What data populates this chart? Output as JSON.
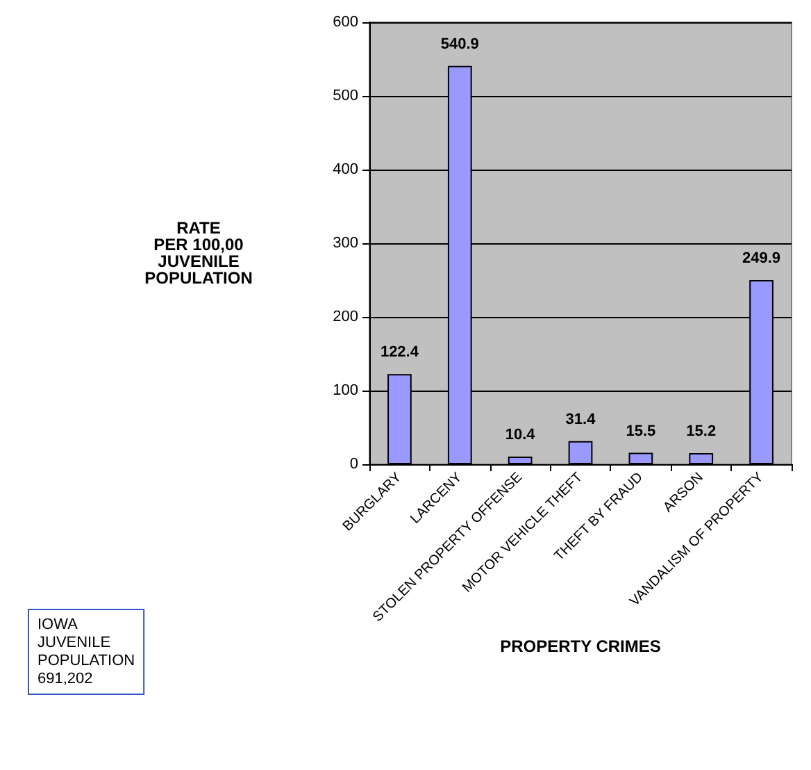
{
  "chart_data": {
    "type": "bar",
    "xlabel": "PROPERTY CRIMES",
    "ylabel": "RATE\nPER 100,00\nJUVENILE\nPOPULATION",
    "categories": [
      "BURGLARY",
      "LARCENY",
      "STOLEN PROPERTY OFFENSE",
      "MOTOR VEHICLE THEFT",
      "THEFT BY FRAUD",
      "ARSON",
      "VANDALISM OF PROPERTY"
    ],
    "values": [
      122.4,
      540.9,
      10.4,
      31.4,
      15.5,
      15.2,
      249.9
    ],
    "color": "#9999ff",
    "ylim": [
      0,
      600
    ],
    "yticks": [
      0,
      100,
      200,
      300,
      400,
      500,
      600
    ],
    "grid": "y",
    "data_labels": true,
    "annotations": [
      "IOWA\nJUVENILE\nPOPULATION\n691,202"
    ]
  }
}
